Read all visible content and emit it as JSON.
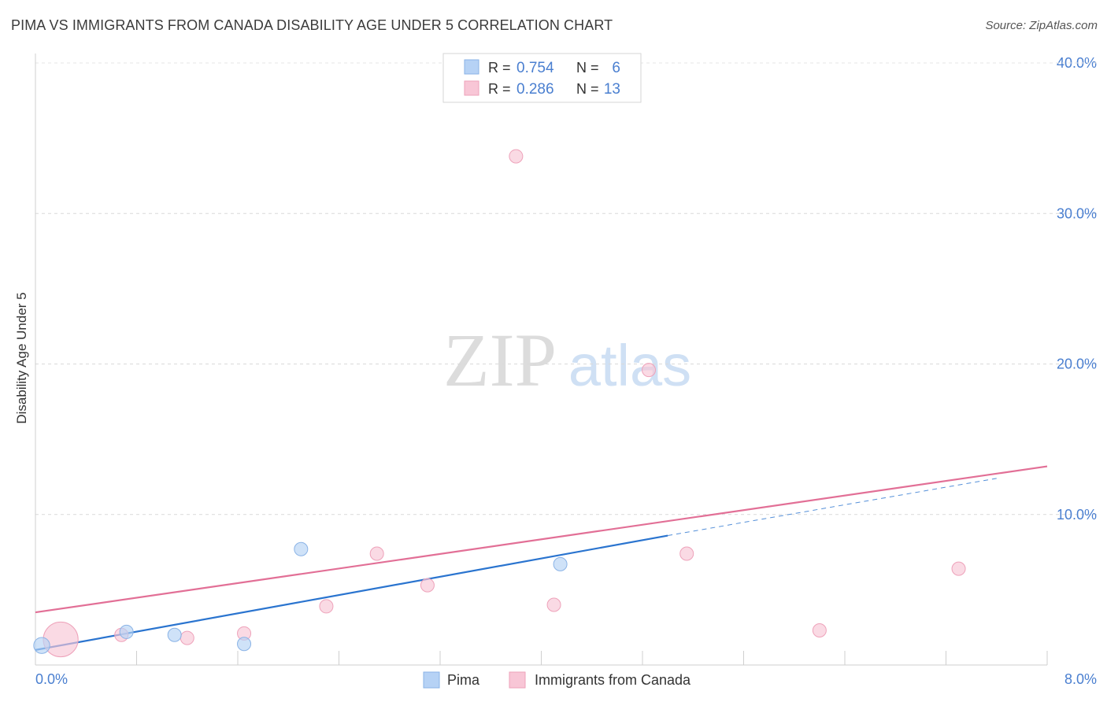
{
  "header": {
    "title": "PIMA VS IMMIGRANTS FROM CANADA DISABILITY AGE UNDER 5 CORRELATION CHART",
    "source": "Source: ZipAtlas.com"
  },
  "watermark": {
    "zip": "ZIP",
    "atlas": "atlas"
  },
  "colors": {
    "pima_fill": "#b6d2f5",
    "pima_stroke": "#8ab3e6",
    "pima_line": "#2a74cf",
    "canada_fill": "#f8c6d6",
    "canada_stroke": "#eea2ba",
    "canada_line": "#e26f96",
    "tick_text": "#4a7fd0",
    "grid": "#d9d9d9"
  },
  "chart_data": {
    "type": "scatter",
    "title": "PIMA VS IMMIGRANTS FROM CANADA DISABILITY AGE UNDER 5 CORRELATION CHART",
    "xlabel": "",
    "ylabel": "Disability Age Under 5",
    "xlim": [
      0,
      8
    ],
    "ylim": [
      0,
      40
    ],
    "x_tick_labels": [
      "0.0%",
      "8.0%"
    ],
    "y_ticks": [
      10,
      20,
      30,
      40
    ],
    "y_tick_labels": [
      "10.0%",
      "20.0%",
      "30.0%",
      "40.0%"
    ],
    "grid": true,
    "legend_position": "top-center",
    "stats": [
      {
        "r_label": "R =",
        "r": "0.754",
        "n_label": "N =",
        "n": "6"
      },
      {
        "r_label": "R =",
        "r": "0.286",
        "n_label": "N =",
        "n": "13"
      }
    ],
    "series": [
      {
        "name": "Pima",
        "points": [
          {
            "x": 0.05,
            "y": 1.3,
            "size": 1.2
          },
          {
            "x": 0.72,
            "y": 2.2,
            "size": 1
          },
          {
            "x": 1.1,
            "y": 2.0,
            "size": 1
          },
          {
            "x": 1.65,
            "y": 1.4,
            "size": 1
          },
          {
            "x": 2.1,
            "y": 7.7,
            "size": 1
          },
          {
            "x": 4.15,
            "y": 6.7,
            "size": 1
          }
        ],
        "trend": {
          "x0": 0.0,
          "y0": 1.0,
          "x1": 5.0,
          "y1": 8.6,
          "dash_x1": 7.6,
          "dash_y1": 12.4
        }
      },
      {
        "name": "Immigrants from Canada",
        "points": [
          {
            "x": 0.2,
            "y": 1.7,
            "size": 2.6
          },
          {
            "x": 0.68,
            "y": 2.0,
            "size": 1
          },
          {
            "x": 1.2,
            "y": 1.8,
            "size": 1
          },
          {
            "x": 1.65,
            "y": 2.1,
            "size": 1
          },
          {
            "x": 2.3,
            "y": 3.9,
            "size": 1
          },
          {
            "x": 2.7,
            "y": 7.4,
            "size": 1
          },
          {
            "x": 3.1,
            "y": 5.3,
            "size": 1
          },
          {
            "x": 3.8,
            "y": 33.8,
            "size": 1
          },
          {
            "x": 4.1,
            "y": 4.0,
            "size": 1
          },
          {
            "x": 4.85,
            "y": 19.6,
            "size": 1
          },
          {
            "x": 5.15,
            "y": 7.4,
            "size": 1
          },
          {
            "x": 6.2,
            "y": 2.3,
            "size": 1
          },
          {
            "x": 7.3,
            "y": 6.4,
            "size": 1
          }
        ],
        "trend": {
          "x0": 0.0,
          "y0": 3.5,
          "x1": 8.0,
          "y1": 13.2
        }
      }
    ]
  }
}
